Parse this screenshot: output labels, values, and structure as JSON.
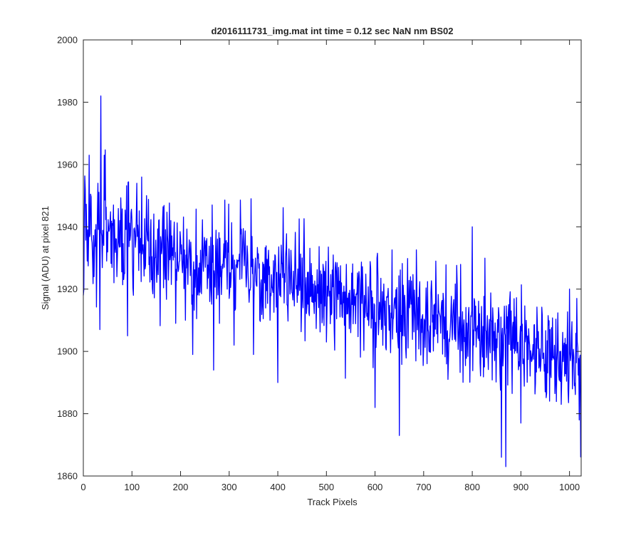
{
  "chart_data": {
    "type": "line",
    "title": "d2016111731_img.mat int time = 0.12 sec  NaN nm BS02",
    "xlabel": "Track Pixels",
    "ylabel": "Signal (ADU) at pixel 821",
    "xlim": [
      0,
      1024
    ],
    "ylim": [
      1860,
      2000
    ],
    "x_ticks": [
      0,
      100,
      200,
      300,
      400,
      500,
      600,
      700,
      800,
      900,
      1000
    ],
    "y_ticks": [
      1860,
      1880,
      1900,
      1920,
      1940,
      1960,
      1980,
      2000
    ],
    "x_tick_labels": [
      "0",
      "100",
      "200",
      "300",
      "400",
      "500",
      "600",
      "700",
      "800",
      "900",
      "1000"
    ],
    "y_tick_labels": [
      "1860",
      "1880",
      "1900",
      "1920",
      "1940",
      "1960",
      "1980",
      "2000"
    ],
    "grid": false,
    "series": [
      {
        "name": "signal",
        "color": "#0000ff",
        "x_start": 0,
        "x_step": 1,
        "n_points": 1024,
        "trend": {
          "start": 1940,
          "end": 1897
        },
        "noise_std": 8,
        "seed": 821,
        "points": [
          [
            0,
            1918
          ],
          [
            4,
            1952
          ],
          [
            8,
            1929
          ],
          [
            12,
            1963
          ],
          [
            17,
            1936
          ],
          [
            22,
            1924
          ],
          [
            30,
            1954
          ],
          [
            34,
            1907
          ],
          [
            36,
            1982
          ],
          [
            38,
            1937
          ],
          [
            43,
            1963
          ],
          [
            48,
            1929
          ],
          [
            62,
            1947
          ],
          [
            69,
            1924
          ],
          [
            75,
            1942
          ],
          [
            85,
            1925
          ],
          [
            91,
            1905
          ],
          [
            100,
            1942
          ],
          [
            103,
            1918
          ],
          [
            110,
            1954
          ],
          [
            120,
            1956
          ],
          [
            130,
            1950
          ],
          [
            140,
            1923
          ],
          [
            150,
            1928
          ],
          [
            160,
            1935
          ],
          [
            170,
            1925
          ],
          [
            180,
            1942
          ],
          [
            190,
            1909
          ],
          [
            200,
            1936
          ],
          [
            210,
            1910
          ],
          [
            225,
            1899
          ],
          [
            240,
            1919
          ],
          [
            251,
            1927
          ],
          [
            260,
            1916
          ],
          [
            265,
            1947
          ],
          [
            268,
            1894
          ],
          [
            280,
            1909
          ],
          [
            285,
            1925
          ],
          [
            290,
            1927
          ],
          [
            296,
            1920
          ],
          [
            300,
            1917
          ],
          [
            310,
            1902
          ],
          [
            320,
            1929
          ],
          [
            340,
            1920
          ],
          [
            345,
            1949
          ],
          [
            350,
            1899
          ],
          [
            400,
            1890
          ],
          [
            450,
            1930
          ],
          [
            500,
            1903
          ],
          [
            525,
            1927
          ],
          [
            550,
            1906
          ],
          [
            600,
            1882
          ],
          [
            650,
            1873
          ],
          [
            700,
            1901
          ],
          [
            725,
            1929
          ],
          [
            750,
            1891
          ],
          [
            800,
            1940
          ],
          [
            825,
            1895
          ],
          [
            850,
            1904
          ],
          [
            860,
            1866
          ],
          [
            869,
            1863
          ],
          [
            875,
            1915
          ],
          [
            900,
            1877
          ],
          [
            950,
            1887
          ],
          [
            983,
            1883
          ],
          [
            1000,
            1920
          ],
          [
            1010,
            1889
          ],
          [
            1015,
            1917
          ],
          [
            1020,
            1878
          ],
          [
            1023,
            1866
          ]
        ]
      }
    ]
  }
}
